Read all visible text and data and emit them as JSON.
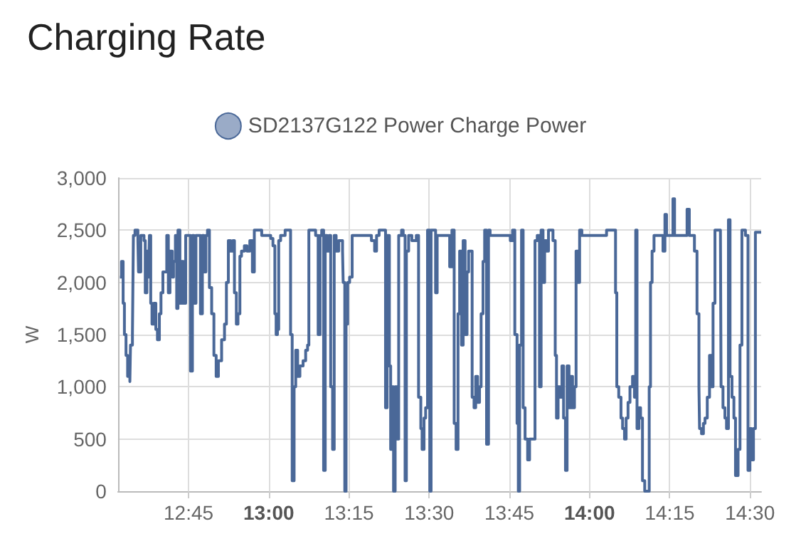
{
  "chart_data": {
    "type": "step",
    "title": "Charging Rate",
    "ylabel": "W",
    "legend": "top",
    "grid": true,
    "xlim": [
      12.53,
      14.535
    ],
    "xticks": [
      {
        "value": 12.75,
        "label": "12:45"
      },
      {
        "value": 13,
        "label": "13:00"
      },
      {
        "value": 13.25,
        "label": "13:15"
      },
      {
        "value": 13.5,
        "label": "13:30"
      },
      {
        "value": 13.75,
        "label": "13:45"
      },
      {
        "value": 14,
        "label": "14:00"
      },
      {
        "value": 14.25,
        "label": "14:15"
      },
      {
        "value": 14.5,
        "label": "14:30"
      }
    ],
    "ylim": [
      0,
      3000
    ],
    "yticks": [
      0,
      500,
      {
        "value": 1000,
        "label": "1,000"
      },
      {
        "value": 1500,
        "label": "1,500"
      },
      {
        "value": 2000,
        "label": "2,000"
      },
      {
        "value": 2500,
        "label": "2,500"
      },
      {
        "value": 3000,
        "label": "3,000"
      }
    ],
    "series": [
      {
        "name": "SD2137G122 Power Charge Power",
        "color": "#4a6898",
        "x": [
          12.536,
          12.541,
          12.546,
          12.55,
          12.555,
          12.56,
          12.567,
          12.569,
          12.575,
          12.578,
          12.583,
          12.592,
          12.594,
          12.601,
          12.611,
          12.615,
          12.62,
          12.625,
          12.628,
          12.632,
          12.636,
          12.642,
          12.648,
          12.653,
          12.659,
          12.664,
          12.67,
          12.682,
          12.687,
          12.692,
          12.699,
          12.703,
          12.709,
          12.713,
          12.717,
          12.723,
          12.728,
          12.734,
          12.741,
          12.756,
          12.762,
          12.767,
          12.773,
          12.787,
          12.793,
          12.798,
          12.804,
          12.809,
          12.815,
          12.822,
          12.829,
          12.836,
          12.843,
          12.853,
          12.862,
          12.868,
          12.874,
          12.881,
          12.888,
          12.893,
          12.899,
          12.904,
          12.91,
          12.915,
          12.924,
          12.932,
          12.941,
          12.949,
          12.955,
          12.978,
          13.006,
          13.013,
          13.019,
          13.023,
          13.027,
          13.031,
          13.037,
          13.051,
          13.068,
          13.073,
          13.079,
          13.084,
          13.09,
          13.097,
          13.107,
          13.115,
          13.121,
          13.125,
          13.146,
          13.154,
          13.16,
          13.165,
          13.171,
          13.176,
          13.182,
          13.188,
          13.193,
          13.199,
          13.204,
          13.21,
          13.218,
          13.23,
          13.232,
          13.237,
          13.241,
          13.246,
          13.252,
          13.26,
          13.32,
          13.33,
          13.336,
          13.344,
          13.364,
          13.369,
          13.376,
          13.38,
          13.384,
          13.389,
          13.394,
          13.4,
          13.405,
          13.414,
          13.419,
          13.425,
          13.429,
          13.436,
          13.446,
          13.46,
          13.467,
          13.474,
          13.478,
          13.484,
          13.489,
          13.495,
          13.502,
          13.506,
          13.52,
          13.525,
          13.558,
          13.564,
          13.571,
          13.578,
          13.584,
          13.59,
          13.595,
          13.601,
          13.606,
          13.612,
          13.618,
          13.623,
          13.634,
          13.64,
          13.645,
          13.651,
          13.657,
          13.662,
          13.668,
          13.673,
          13.679,
          13.685,
          13.69,
          13.753,
          13.76,
          13.767,
          13.774,
          13.778,
          13.782,
          13.788,
          13.793,
          13.799,
          13.807,
          13.813,
          13.83,
          13.837,
          13.844,
          13.849,
          13.855,
          13.86,
          13.866,
          13.872,
          13.886,
          13.893,
          13.897,
          13.902,
          13.908,
          13.914,
          13.919,
          13.925,
          13.93,
          13.936,
          13.941,
          13.947,
          13.953,
          13.958,
          13.964,
          13.969,
          13.976,
          14.053,
          14.081,
          14.085,
          14.091,
          14.098,
          14.103,
          14.109,
          14.114,
          14.12,
          14.126,
          14.134,
          14.14,
          14.144,
          14.148,
          14.154,
          14.159,
          14.165,
          14.172,
          14.186,
          14.19,
          14.195,
          14.201,
          14.229,
          14.235,
          14.24,
          14.26,
          14.265,
          14.304,
          14.311,
          14.327,
          14.335,
          14.341,
          14.343,
          14.349,
          14.355,
          14.36,
          14.367,
          14.374,
          14.38,
          14.385,
          14.391,
          14.408,
          14.41,
          14.416,
          14.422,
          14.427,
          14.433,
          14.438,
          14.444,
          14.45,
          14.455,
          14.463,
          14.469,
          14.475,
          14.486,
          14.494,
          14.5,
          14.505,
          14.511,
          14.517,
          14.535
        ],
        "values": [
          2050,
          2200,
          1800,
          1500,
          1300,
          1100,
          1050,
          1400,
          1500,
          2450,
          2500,
          2400,
          2100,
          2450,
          2400,
          1900,
          2300,
          2050,
          2450,
          1800,
          1600,
          1800,
          1550,
          1450,
          1700,
          1900,
          2100,
          2450,
          1900,
          2300,
          2050,
          2200,
          2450,
          1750,
          2500,
          1800,
          2200,
          1800,
          2450,
          1150,
          2450,
          1800,
          2450,
          1700,
          2450,
          2100,
          2450,
          2500,
          1950,
          1700,
          1300,
          1100,
          1250,
          1450,
          1600,
          2000,
          2400,
          2300,
          2400,
          1900,
          1600,
          1700,
          2250,
          2300,
          2350,
          2300,
          2400,
          2100,
          2500,
          2450,
          2420,
          2350,
          1700,
          1500,
          1550,
          2400,
          2450,
          2500,
          1500,
          100,
          1000,
          1350,
          1100,
          1200,
          1250,
          1350,
          1400,
          2500,
          2450,
          1500,
          2450,
          2500,
          200,
          2450,
          2300,
          2450,
          1000,
          400,
          2450,
          2300,
          2400,
          2300,
          2000,
          0,
          1600,
          2000,
          2050,
          2450,
          2400,
          2300,
          2450,
          2500,
          800,
          2450,
          1200,
          400,
          1000,
          0,
          1000,
          500,
          2450,
          2500,
          2450,
          100,
          2300,
          2450,
          2400,
          2450,
          900,
          600,
          400,
          700,
          800,
          2500,
          0,
          2500,
          1900,
          2450,
          2450,
          2150,
          2500,
          650,
          400,
          1700,
          2300,
          1400,
          2400,
          1500,
          2100,
          2300,
          900,
          800,
          1100,
          850,
          1000,
          1700,
          2200,
          2500,
          450,
          2500,
          2450,
          2400,
          2500,
          1500,
          650,
          0,
          1400,
          2500,
          800,
          500,
          300,
          500,
          2400,
          2450,
          1000,
          2500,
          2000,
          2400,
          2300,
          2500,
          2400,
          1300,
          700,
          1000,
          900,
          1200,
          700,
          200,
          1200,
          800,
          1100,
          800,
          1000,
          2300,
          2000,
          2500,
          2450,
          2500,
          1900,
          1000,
          900,
          700,
          600,
          500,
          700,
          850,
          1000,
          1100,
          900,
          2500,
          600,
          800,
          700,
          100,
          0,
          1000,
          2000,
          2300,
          2450,
          2300,
          2650,
          2450,
          2800,
          2450,
          2700,
          2450,
          2300,
          1700,
          1000,
          600,
          550,
          650,
          700,
          900,
          1300,
          1000,
          1800,
          2500,
          2500,
          1000,
          800,
          700,
          600,
          2600,
          1100,
          900,
          700,
          150,
          400,
          1400,
          2500,
          2450,
          200,
          600,
          300,
          600,
          2480,
          2480
        ]
      }
    ]
  }
}
